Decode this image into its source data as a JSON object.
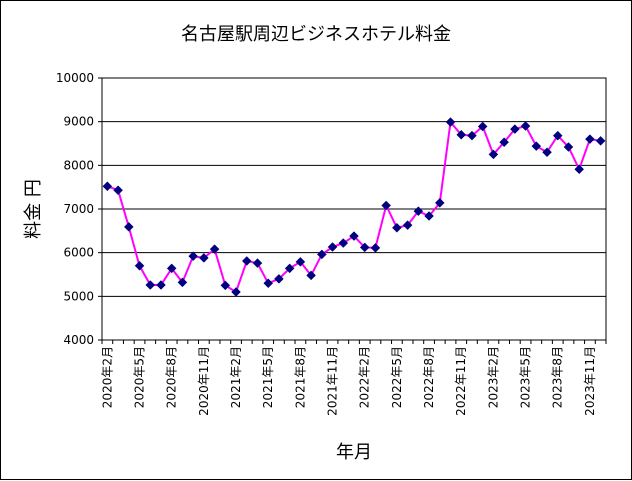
{
  "chart_data": {
    "type": "line",
    "title": "名古屋駅周辺ビジネスホテル料金",
    "xlabel": "年月",
    "ylabel": "料金 円",
    "ylim": [
      4000,
      10000
    ],
    "ytick_step": 1000,
    "grid": true,
    "colors": {
      "line": "#ff00ff",
      "marker": "#000080",
      "grid": "#000000",
      "background": "#ffffff"
    },
    "x_tick_labels": [
      "2020年2月",
      "2020年5月",
      "2020年8月",
      "2020年11月",
      "2021年2月",
      "2021年5月",
      "2021年8月",
      "2021年11月",
      "2022年2月",
      "2022年5月",
      "2022年8月",
      "2022年11月",
      "2023年2月",
      "2023年5月",
      "2023年8月",
      "2023年11月"
    ],
    "series": [
      {
        "name": "料金",
        "values": [
          7520,
          7430,
          6590,
          5700,
          5260,
          5260,
          5640,
          5320,
          5920,
          5880,
          6080,
          5250,
          5100,
          5810,
          5760,
          5300,
          5400,
          5640,
          5790,
          5480,
          5960,
          6130,
          6220,
          6380,
          6120,
          6110,
          7080,
          6570,
          6630,
          6950,
          6840,
          7140,
          8990,
          8700,
          8680,
          8890,
          8250,
          8530,
          8830,
          8900,
          8440,
          8300,
          8680,
          8420,
          7910,
          8600,
          8560
        ]
      }
    ]
  }
}
